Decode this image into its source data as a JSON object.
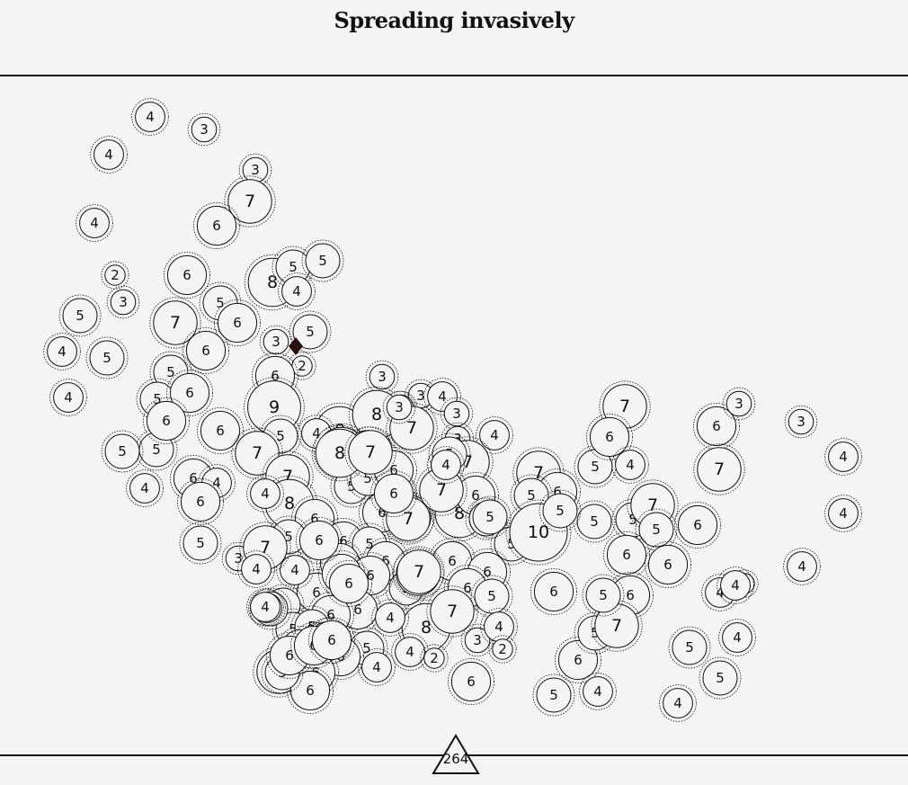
{
  "title": "Spreading invasively",
  "counter": "264",
  "colors": {
    "background": "#f5f3f4",
    "ink": "#111111"
  },
  "markers": [
    {
      "v": 4
    },
    {
      "v": 3
    },
    {
      "v": 4
    },
    {
      "v": 3
    },
    {
      "v": 7
    },
    {
      "v": 4
    },
    {
      "v": 6
    },
    {
      "v": 2
    },
    {
      "v": 6
    },
    {
      "v": 8
    },
    {
      "v": 5
    },
    {
      "v": 5
    },
    {
      "v": 4
    },
    {
      "v": 3
    },
    {
      "v": 5
    },
    {
      "v": 5
    },
    {
      "v": 6
    },
    {
      "v": 7
    },
    {
      "v": 5
    },
    {
      "v": 4
    },
    {
      "v": 5
    },
    {
      "v": 6
    },
    {
      "v": 3
    },
    {
      "v": 5
    },
    {
      "v": 2
    },
    {
      "v": 6
    },
    {
      "v": 5
    },
    {
      "v": 4
    },
    {
      "v": 6
    },
    {
      "v": 5
    },
    {
      "v": 6
    },
    {
      "v": 3
    },
    {
      "v": 3
    },
    {
      "v": 3
    },
    {
      "v": 4
    },
    {
      "v": 9
    },
    {
      "v": 8
    },
    {
      "v": 8
    },
    {
      "v": 7
    },
    {
      "v": 3
    },
    {
      "v": 5
    },
    {
      "v": 4
    },
    {
      "v": 8
    },
    {
      "v": 3
    },
    {
      "v": 4
    },
    {
      "v": 6
    },
    {
      "v": 5
    },
    {
      "v": 7
    },
    {
      "v": 5
    },
    {
      "v": 6
    },
    {
      "v": 4
    },
    {
      "v": 7
    },
    {
      "v": 7
    },
    {
      "v": 4
    },
    {
      "v": 7
    },
    {
      "v": 7
    },
    {
      "v": 6
    },
    {
      "v": 5
    },
    {
      "v": 7
    },
    {
      "v": 6
    },
    {
      "v": 6
    },
    {
      "v": 7
    },
    {
      "v": 8
    },
    {
      "v": 4
    },
    {
      "v": 8
    },
    {
      "v": 5
    },
    {
      "v": 6
    },
    {
      "v": 5
    },
    {
      "v": 4
    },
    {
      "v": 6
    },
    {
      "v": 5
    },
    {
      "v": 5
    },
    {
      "v": 7
    },
    {
      "v": 4
    },
    {
      "v": 6
    },
    {
      "v": 6
    },
    {
      "v": 10
    },
    {
      "v": 5
    },
    {
      "v": 7
    },
    {
      "v": 6
    },
    {
      "v": 4
    },
    {
      "v": 4
    },
    {
      "v": 5
    },
    {
      "v": 5
    },
    {
      "v": 7
    },
    {
      "v": 6
    },
    {
      "v": 6
    },
    {
      "v": 4
    },
    {
      "v": 5
    },
    {
      "v": 6
    },
    {
      "v": 3
    },
    {
      "v": 6
    },
    {
      "v": 6
    },
    {
      "v": 6
    },
    {
      "v": 5
    },
    {
      "v": 6
    },
    {
      "v": 5
    },
    {
      "v": 7
    },
    {
      "v": 6
    },
    {
      "v": 6
    },
    {
      "v": 6
    },
    {
      "v": 5
    },
    {
      "v": 6
    },
    {
      "v": 5
    },
    {
      "v": 6
    },
    {
      "v": 4
    },
    {
      "v": 7
    },
    {
      "v": 6
    },
    {
      "v": 5
    },
    {
      "v": 8
    },
    {
      "v": 4
    },
    {
      "v": 2
    },
    {
      "v": 6
    },
    {
      "v": 3
    },
    {
      "v": 5
    },
    {
      "v": 4
    },
    {
      "v": 7
    },
    {
      "v": 5
    },
    {
      "v": 6
    },
    {
      "v": 6
    },
    {
      "v": 5
    },
    {
      "v": 4
    },
    {
      "v": 4
    },
    {
      "v": 6
    },
    {
      "v": 6
    },
    {
      "v": 4
    },
    {
      "v": 5
    },
    {
      "v": 7
    },
    {
      "v": 5
    },
    {
      "v": 6
    },
    {
      "v": 2
    },
    {
      "v": 4
    },
    {
      "v": 4
    },
    {
      "v": 6
    },
    {
      "v": 5
    },
    {
      "v": 4
    },
    {
      "v": 5
    },
    {
      "v": 4
    },
    {
      "v": 5
    },
    {
      "v": 4
    },
    {
      "v": 2
    },
    {
      "v": 4
    },
    {
      "v": 4
    },
    {
      "v": 5
    },
    {
      "v": 4
    },
    {
      "v": 6
    },
    {
      "v": 6
    },
    {
      "v": 5
    },
    {
      "v": 5
    },
    {
      "v": 6
    },
    {
      "v": 4
    },
    {
      "v": 3
    },
    {
      "v": 7
    },
    {
      "v": 5
    },
    {
      "v": 6
    },
    {
      "v": 5
    },
    {
      "v": 6
    },
    {
      "v": 6
    },
    {
      "v": 5
    },
    {
      "v": 6
    },
    {
      "v": 8
    },
    {
      "v": 7
    },
    {
      "v": 7
    },
    {
      "v": 7
    },
    {
      "v": 5
    },
    {
      "v": 6
    },
    {
      "v": 4
    },
    {
      "v": 5
    },
    {
      "v": 6
    },
    {
      "v": 6
    },
    {
      "v": 3
    },
    {
      "v": 3
    }
  ]
}
